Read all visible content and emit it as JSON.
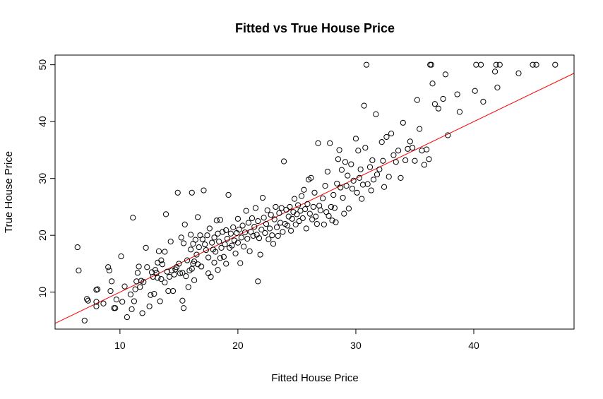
{
  "chart_data": {
    "type": "scatter",
    "title": "Fitted vs True House Price",
    "xlabel": "Fitted House Price",
    "ylabel": "True House Price",
    "xlim": [
      4.5,
      48.5
    ],
    "ylim": [
      3.5,
      51.7
    ],
    "x_ticks": [
      10,
      20,
      30,
      40
    ],
    "y_ticks": [
      10,
      20,
      30,
      40,
      50
    ],
    "x_tick_labels": [
      "10",
      "20",
      "30",
      "40"
    ],
    "y_tick_labels": [
      "10",
      "20",
      "30",
      "40",
      "50"
    ],
    "grid": false,
    "legend": "none",
    "point_style": "open-circle",
    "point_color": "#000000",
    "reference_line": {
      "slope": 1,
      "intercept": 0,
      "color": "#ff0000",
      "x_range": [
        4.5,
        48.5
      ]
    },
    "series": [
      {
        "points": [
          [
            6.4,
            17.9
          ],
          [
            6.5,
            13.8
          ],
          [
            7.0,
            5.0
          ],
          [
            7.2,
            8.8
          ],
          [
            7.3,
            8.5
          ],
          [
            8.0,
            8.3
          ],
          [
            8.0,
            10.4
          ],
          [
            8.1,
            10.5
          ],
          [
            8.0,
            7.5
          ],
          [
            8.6,
            8.0
          ],
          [
            9.0,
            14.4
          ],
          [
            9.1,
            13.8
          ],
          [
            9.2,
            10.2
          ],
          [
            9.3,
            11.9
          ],
          [
            9.5,
            7.2
          ],
          [
            9.6,
            7.2
          ],
          [
            9.7,
            8.7
          ],
          [
            10.1,
            16.3
          ],
          [
            10.2,
            8.3
          ],
          [
            10.4,
            11.0
          ],
          [
            10.6,
            5.6
          ],
          [
            10.9,
            9.6
          ],
          [
            11.0,
            7.0
          ],
          [
            11.1,
            23.1
          ],
          [
            11.2,
            8.4
          ],
          [
            11.3,
            10.5
          ],
          [
            11.4,
            11.9
          ],
          [
            11.5,
            13.4
          ],
          [
            11.6,
            14.5
          ],
          [
            11.7,
            10.9
          ],
          [
            11.8,
            12.0
          ],
          [
            11.9,
            6.3
          ],
          [
            12.0,
            11.8
          ],
          [
            12.2,
            17.8
          ],
          [
            12.3,
            14.4
          ],
          [
            12.5,
            7.5
          ],
          [
            12.6,
            9.5
          ],
          [
            12.7,
            13.5
          ],
          [
            12.8,
            12.7
          ],
          [
            12.9,
            9.7
          ],
          [
            13.0,
            13.9
          ],
          [
            13.1,
            13.4
          ],
          [
            13.2,
            12.5
          ],
          [
            13.2,
            15.2
          ],
          [
            13.3,
            17.2
          ],
          [
            13.4,
            8.4
          ],
          [
            13.5,
            15.6
          ],
          [
            13.5,
            12.3
          ],
          [
            13.6,
            14.9
          ],
          [
            13.8,
            11.7
          ],
          [
            13.8,
            17.1
          ],
          [
            13.9,
            23.7
          ],
          [
            14.0,
            13.6
          ],
          [
            14.1,
            10.2
          ],
          [
            14.2,
            12.7
          ],
          [
            14.3,
            18.9
          ],
          [
            14.4,
            13.8
          ],
          [
            14.5,
            10.2
          ],
          [
            14.6,
            13.1
          ],
          [
            14.7,
            14.0
          ],
          [
            14.8,
            14.4
          ],
          [
            14.9,
            27.5
          ],
          [
            15.0,
            15.0
          ],
          [
            15.1,
            13.3
          ],
          [
            15.2,
            19.6
          ],
          [
            15.3,
            13.4
          ],
          [
            15.3,
            8.5
          ],
          [
            15.4,
            7.2
          ],
          [
            15.4,
            18.6
          ],
          [
            15.5,
            21.9
          ],
          [
            15.6,
            12.8
          ],
          [
            15.7,
            15.6
          ],
          [
            15.8,
            10.9
          ],
          [
            15.9,
            13.8
          ],
          [
            16.0,
            17.5
          ],
          [
            16.0,
            20.1
          ],
          [
            16.1,
            14.1
          ],
          [
            16.1,
            27.5
          ],
          [
            16.2,
            15.0
          ],
          [
            16.2,
            18.5
          ],
          [
            16.3,
            12.1
          ],
          [
            16.3,
            15.4
          ],
          [
            16.4,
            19.2
          ],
          [
            16.5,
            16.6
          ],
          [
            16.6,
            14.9
          ],
          [
            16.6,
            23.2
          ],
          [
            16.7,
            17.9
          ],
          [
            16.8,
            20.0
          ],
          [
            16.9,
            14.5
          ],
          [
            17.0,
            19.3
          ],
          [
            17.1,
            27.9
          ],
          [
            17.2,
            18.4
          ],
          [
            17.3,
            17.4
          ],
          [
            17.4,
            20.0
          ],
          [
            17.5,
            13.3
          ],
          [
            17.5,
            16.1
          ],
          [
            17.6,
            21.2
          ],
          [
            17.7,
            12.7
          ],
          [
            17.8,
            18.7
          ],
          [
            17.9,
            17.5
          ],
          [
            18.0,
            15.2
          ],
          [
            18.0,
            19.6
          ],
          [
            18.1,
            17.1
          ],
          [
            18.2,
            22.6
          ],
          [
            18.3,
            13.9
          ],
          [
            18.3,
            20.3
          ],
          [
            18.4,
            18.9
          ],
          [
            18.5,
            16.0
          ],
          [
            18.5,
            22.7
          ],
          [
            18.6,
            17.8
          ],
          [
            18.7,
            20.6
          ],
          [
            18.8,
            16.2
          ],
          [
            18.9,
            18.4
          ],
          [
            19.0,
            20.9
          ],
          [
            19.0,
            15.0
          ],
          [
            19.1,
            19.4
          ],
          [
            19.2,
            27.1
          ],
          [
            19.3,
            17.8
          ],
          [
            19.4,
            20.3
          ],
          [
            19.5,
            18.2
          ],
          [
            19.6,
            21.4
          ],
          [
            19.7,
            19.1
          ],
          [
            19.8,
            16.8
          ],
          [
            19.9,
            20.4
          ],
          [
            20.0,
            22.9
          ],
          [
            20.0,
            18.7
          ],
          [
            20.1,
            21.0
          ],
          [
            20.2,
            15.1
          ],
          [
            20.3,
            19.6
          ],
          [
            20.4,
            21.7
          ],
          [
            20.5,
            18.0
          ],
          [
            20.6,
            20.5
          ],
          [
            20.7,
            24.3
          ],
          [
            20.8,
            19.4
          ],
          [
            20.9,
            22.2
          ],
          [
            21.0,
            17.2
          ],
          [
            21.1,
            20.6
          ],
          [
            21.2,
            23.0
          ],
          [
            21.3,
            19.9
          ],
          [
            21.4,
            21.5
          ],
          [
            21.5,
            24.8
          ],
          [
            21.6,
            20.1
          ],
          [
            21.7,
            11.9
          ],
          [
            21.7,
            22.5
          ],
          [
            21.8,
            19.5
          ],
          [
            21.9,
            16.6
          ],
          [
            22.0,
            21.0
          ],
          [
            22.1,
            26.6
          ],
          [
            22.2,
            23.1
          ],
          [
            22.3,
            20.4
          ],
          [
            22.4,
            22.0
          ],
          [
            22.5,
            24.4
          ],
          [
            22.6,
            19.3
          ],
          [
            22.7,
            21.2
          ],
          [
            22.8,
            23.6
          ],
          [
            22.9,
            20.0
          ],
          [
            23.0,
            18.5
          ],
          [
            23.1,
            22.8
          ],
          [
            23.2,
            25.0
          ],
          [
            23.3,
            21.4
          ],
          [
            23.4,
            19.9
          ],
          [
            23.5,
            23.9
          ],
          [
            23.6,
            22.2
          ],
          [
            23.7,
            24.8
          ],
          [
            23.8,
            20.6
          ],
          [
            23.9,
            33.0
          ],
          [
            24.0,
            22.0
          ],
          [
            24.1,
            24.5
          ],
          [
            24.2,
            21.7
          ],
          [
            24.3,
            23.3
          ],
          [
            24.4,
            25.0
          ],
          [
            24.5,
            20.8
          ],
          [
            24.6,
            22.9
          ],
          [
            24.7,
            24.1
          ],
          [
            24.8,
            26.4
          ],
          [
            24.9,
            21.9
          ],
          [
            25.0,
            23.7
          ],
          [
            25.1,
            25.3
          ],
          [
            25.2,
            22.5
          ],
          [
            25.3,
            24.3
          ],
          [
            25.4,
            26.9
          ],
          [
            25.5,
            23.0
          ],
          [
            25.6,
            28.0
          ],
          [
            25.7,
            24.6
          ],
          [
            25.8,
            21.2
          ],
          [
            25.9,
            25.5
          ],
          [
            26.0,
            29.8
          ],
          [
            26.1,
            23.8
          ],
          [
            26.2,
            30.1
          ],
          [
            26.3,
            22.8
          ],
          [
            26.4,
            25.0
          ],
          [
            26.5,
            27.5
          ],
          [
            26.6,
            23.3
          ],
          [
            26.7,
            22.0
          ],
          [
            26.8,
            36.2
          ],
          [
            26.9,
            25.2
          ],
          [
            27.0,
            24.4
          ],
          [
            27.2,
            26.5
          ],
          [
            27.3,
            21.9
          ],
          [
            27.4,
            28.7
          ],
          [
            27.5,
            24.1
          ],
          [
            27.6,
            31.2
          ],
          [
            27.7,
            23.4
          ],
          [
            27.8,
            36.2
          ],
          [
            27.9,
            25.0
          ],
          [
            28.0,
            22.6
          ],
          [
            28.1,
            27.1
          ],
          [
            28.2,
            24.8
          ],
          [
            28.3,
            22.3
          ],
          [
            28.4,
            29.1
          ],
          [
            28.5,
            33.4
          ],
          [
            28.6,
            35.0
          ],
          [
            28.7,
            28.4
          ],
          [
            28.8,
            31.5
          ],
          [
            28.9,
            26.6
          ],
          [
            29.0,
            23.8
          ],
          [
            29.1,
            32.9
          ],
          [
            29.2,
            28.7
          ],
          [
            29.3,
            30.5
          ],
          [
            29.4,
            24.7
          ],
          [
            29.6,
            32.5
          ],
          [
            29.7,
            28.2
          ],
          [
            29.8,
            29.6
          ],
          [
            30.0,
            37.0
          ],
          [
            30.1,
            27.5
          ],
          [
            30.2,
            34.9
          ],
          [
            30.3,
            30.1
          ],
          [
            30.4,
            31.6
          ],
          [
            30.5,
            26.4
          ],
          [
            30.6,
            28.9
          ],
          [
            30.7,
            42.8
          ],
          [
            30.8,
            35.4
          ],
          [
            30.9,
            50.0
          ],
          [
            31.0,
            29.0
          ],
          [
            31.2,
            32.0
          ],
          [
            31.3,
            27.9
          ],
          [
            31.4,
            33.2
          ],
          [
            31.5,
            29.8
          ],
          [
            31.7,
            41.3
          ],
          [
            31.8,
            30.7
          ],
          [
            32.0,
            31.6
          ],
          [
            32.2,
            36.4
          ],
          [
            32.3,
            33.1
          ],
          [
            32.4,
            28.5
          ],
          [
            32.6,
            37.3
          ],
          [
            32.8,
            30.3
          ],
          [
            33.0,
            37.9
          ],
          [
            33.2,
            34.1
          ],
          [
            33.4,
            32.9
          ],
          [
            33.6,
            34.9
          ],
          [
            33.8,
            30.1
          ],
          [
            34.0,
            39.8
          ],
          [
            34.2,
            33.2
          ],
          [
            34.4,
            35.2
          ],
          [
            34.6,
            36.5
          ],
          [
            34.8,
            35.4
          ],
          [
            35.0,
            33.1
          ],
          [
            35.2,
            43.8
          ],
          [
            35.4,
            38.7
          ],
          [
            35.6,
            34.9
          ],
          [
            35.8,
            32.4
          ],
          [
            36.0,
            35.1
          ],
          [
            36.2,
            33.4
          ],
          [
            36.3,
            50.0
          ],
          [
            36.4,
            50.0
          ],
          [
            36.5,
            46.7
          ],
          [
            36.7,
            43.1
          ],
          [
            37.0,
            42.3
          ],
          [
            37.4,
            44.0
          ],
          [
            37.6,
            48.3
          ],
          [
            37.8,
            37.6
          ],
          [
            38.6,
            44.8
          ],
          [
            38.8,
            41.7
          ],
          [
            40.1,
            45.4
          ],
          [
            40.2,
            50.0
          ],
          [
            40.6,
            50.0
          ],
          [
            40.8,
            43.5
          ],
          [
            41.8,
            48.8
          ],
          [
            41.9,
            50.0
          ],
          [
            42.0,
            46.0
          ],
          [
            42.2,
            50.0
          ],
          [
            43.8,
            48.5
          ],
          [
            45.0,
            50.0
          ],
          [
            45.3,
            50.0
          ],
          [
            46.9,
            50.0
          ]
        ]
      }
    ]
  }
}
